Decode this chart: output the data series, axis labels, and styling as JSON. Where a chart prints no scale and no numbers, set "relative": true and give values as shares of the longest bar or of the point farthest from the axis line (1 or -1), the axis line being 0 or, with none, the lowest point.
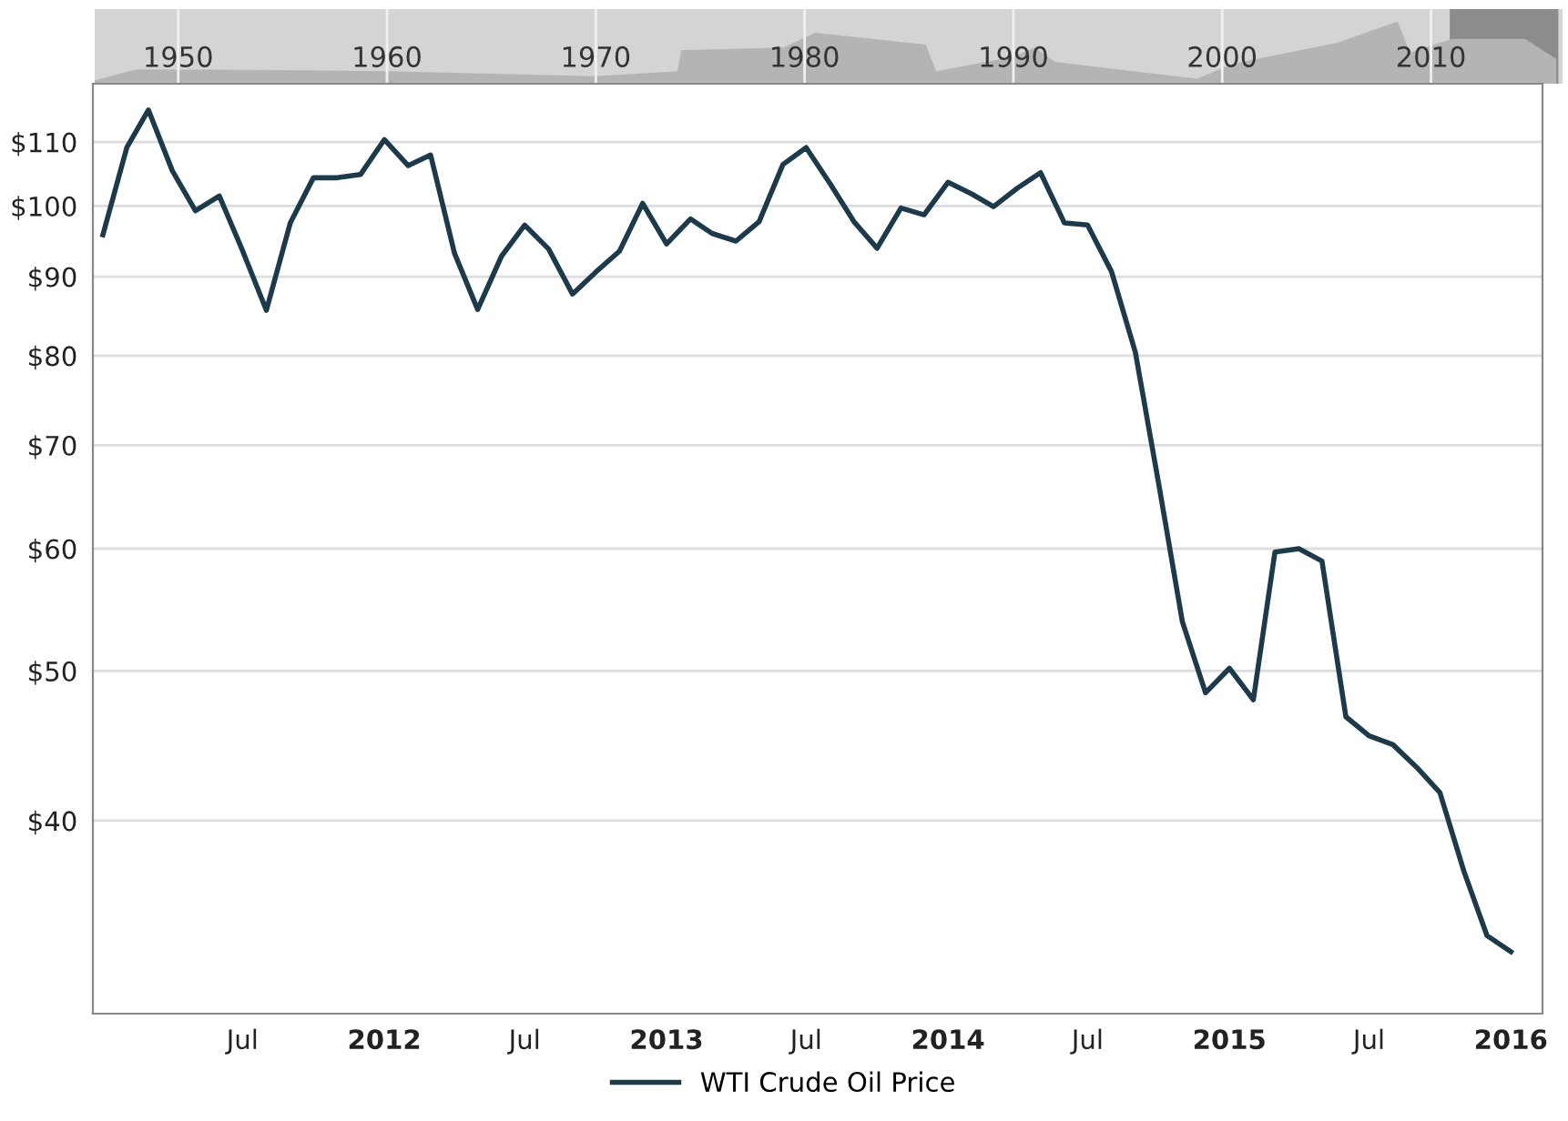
{
  "chart_data": [
    {
      "type": "area",
      "relative": true,
      "tick_labels": "x",
      "grid": "x",
      "x": [
        1946,
        1948,
        1955,
        1960,
        1970,
        1973.9,
        1974.1,
        1979,
        1980.5,
        1985.8,
        1986.3,
        1990,
        1991,
        1992,
        1998.8,
        2000.5,
        2005.5,
        2008.4,
        2009,
        2011,
        2014.5,
        2016
      ],
      "series": [
        {
          "color": "#b4b4b4",
          "values": [
            0.05,
            0.23,
            0.22,
            0.2,
            0.12,
            0.2,
            0.54,
            0.58,
            0.82,
            0.63,
            0.2,
            0.43,
            0.58,
            0.35,
            0.08,
            0.32,
            0.66,
            1.0,
            0.5,
            0.72,
            0.72,
            0.4
          ]
        }
      ],
      "xlim": [
        1946,
        2016.3
      ],
      "xticks": [
        1950,
        1960,
        1970,
        1980,
        1990,
        2000,
        2010
      ],
      "bands": [
        {
          "axis": "x",
          "from": 2010.9,
          "to": 2016.1,
          "color": "#8c8c8c"
        }
      ]
    },
    {
      "type": "line",
      "log": true,
      "grid": "y",
      "legend": "bottom",
      "x": [
        "2011-01",
        "2011-02",
        "2011-03",
        "2011-04",
        "2011-05",
        "2011-06",
        "2011-07",
        "2011-08",
        "2011-09",
        "2011-10",
        "2011-11",
        "2011-12",
        "2012-01",
        "2012-02",
        "2012-03",
        "2012-04",
        "2012-05",
        "2012-06",
        "2012-07",
        "2012-08",
        "2012-09",
        "2012-10",
        "2012-11",
        "2012-12",
        "2013-01",
        "2013-02",
        "2013-03",
        "2013-04",
        "2013-05",
        "2013-06",
        "2013-07",
        "2013-08",
        "2013-09",
        "2013-10",
        "2013-11",
        "2013-12",
        "2014-01",
        "2014-02",
        "2014-03",
        "2014-04",
        "2014-05",
        "2014-06",
        "2014-07",
        "2014-08",
        "2014-09",
        "2014-10",
        "2014-11",
        "2014-12",
        "2015-01",
        "2015-02",
        "2015-03",
        "2015-04",
        "2015-05",
        "2015-06",
        "2015-07",
        "2015-08",
        "2015-09",
        "2015-10",
        "2015-11",
        "2015-12",
        "2016-01"
      ],
      "series": [
        {
          "name": "WTI Crude Oil Price",
          "color": "#1c3a4a",
          "values": [
            95.8,
            109.1,
            115.4,
            105.4,
            99.3,
            101.5,
            93.6,
            85.6,
            97.5,
            104.3,
            104.3,
            104.8,
            110.4,
            106.2,
            107.9,
            93.2,
            85.7,
            92.8,
            97.2,
            93.8,
            87.7,
            90.6,
            93.5,
            100.4,
            94.5,
            98.1,
            96.0,
            94.9,
            97.7,
            106.4,
            109.1,
            103.4,
            97.7,
            93.9,
            99.7,
            98.7,
            103.6,
            101.8,
            99.9,
            102.7,
            105.1,
            97.5,
            97.2,
            90.7,
            80.4,
            66.2,
            53.8,
            48.4,
            50.2,
            47.9,
            59.7,
            60.0,
            58.9,
            46.7,
            45.4,
            44.8,
            43.3,
            41.7,
            37.1,
            33.7,
            32.9
          ]
        }
      ],
      "xlim": [
        "2010-12-19",
        "2016-02-11"
      ],
      "xticks": [
        {
          "value": "2011-07-01",
          "label": "Jul"
        },
        {
          "value": "2012-01-01",
          "label": "2012"
        },
        {
          "value": "2012-07-01",
          "label": "Jul"
        },
        {
          "value": "2013-01-01",
          "label": "2013"
        },
        {
          "value": "2013-07-01",
          "label": "Jul"
        },
        {
          "value": "2014-01-01",
          "label": "2014"
        },
        {
          "value": "2014-07-01",
          "label": "Jul"
        },
        {
          "value": "2015-01-01",
          "label": "2015"
        },
        {
          "value": "2015-07-01",
          "label": "Jul"
        },
        {
          "value": "2016-01-01",
          "label": "2016"
        }
      ],
      "ylim": [
        30,
        120
      ],
      "yticks": [
        {
          "value": 40,
          "label": "$40"
        },
        {
          "value": 50,
          "label": "$50"
        },
        {
          "value": 60,
          "label": "$60"
        },
        {
          "value": 70,
          "label": "$70"
        },
        {
          "value": 80,
          "label": "$80"
        },
        {
          "value": 90,
          "label": "$90"
        },
        {
          "value": 100,
          "label": "$100"
        },
        {
          "value": 110,
          "label": "$110"
        }
      ]
    }
  ]
}
